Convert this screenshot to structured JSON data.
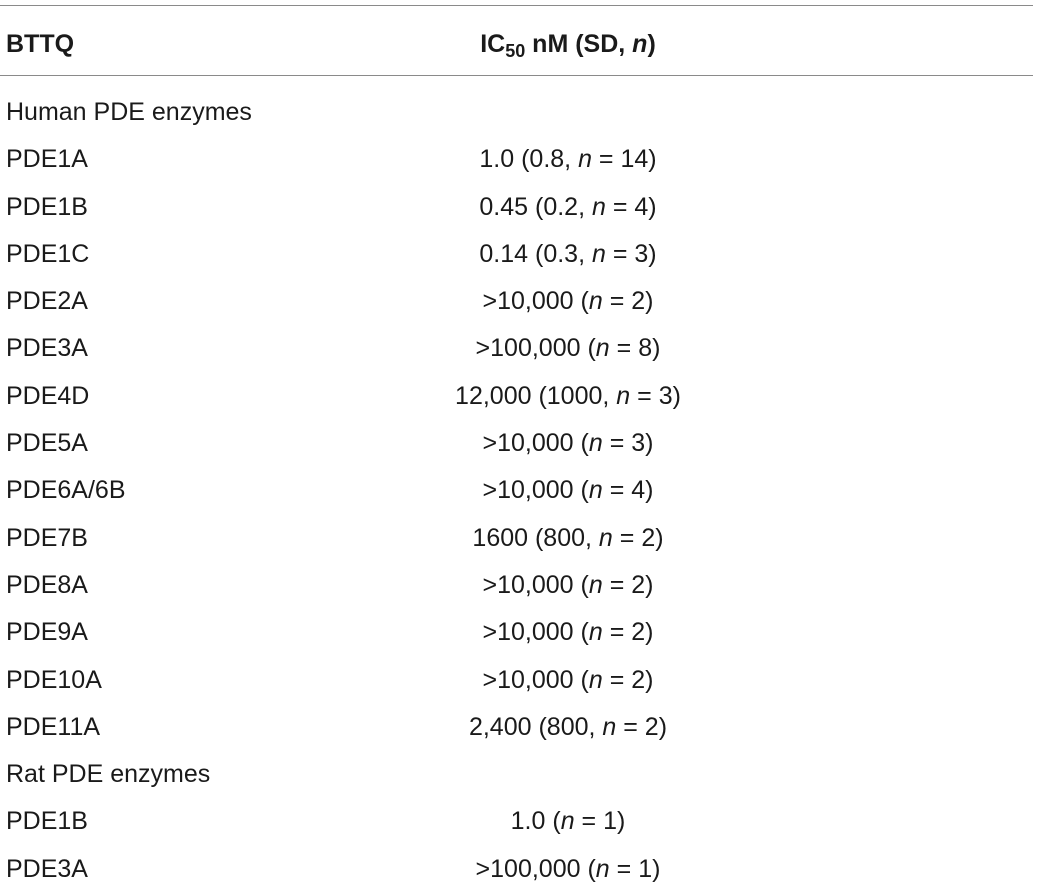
{
  "table": {
    "header": {
      "col1": "BTTQ",
      "col2_pre": "IC",
      "col2_sub": "50",
      "col2_mid": " nM (SD, ",
      "col2_n": "n",
      "col2_post": ")"
    },
    "rows": [
      {
        "type": "section",
        "label": "Human PDE enzymes"
      },
      {
        "type": "data",
        "enzyme": "PDE1A",
        "pre": "1.0 (0.8, ",
        "n": "n",
        "post": " = 14)"
      },
      {
        "type": "data",
        "enzyme": "PDE1B",
        "pre": "0.45 (0.2, ",
        "n": "n",
        "post": " = 4)"
      },
      {
        "type": "data",
        "enzyme": "PDE1C",
        "pre": "0.14 (0.3, ",
        "n": "n",
        "post": " = 3)"
      },
      {
        "type": "data",
        "enzyme": "PDE2A",
        "pre": ">10,000 (",
        "n": "n",
        "post": " = 2)"
      },
      {
        "type": "data",
        "enzyme": "PDE3A",
        "pre": ">100,000 (",
        "n": "n",
        "post": " = 8)"
      },
      {
        "type": "data",
        "enzyme": "PDE4D",
        "pre": "12,000 (1000, ",
        "n": "n",
        "post": " = 3)"
      },
      {
        "type": "data",
        "enzyme": "PDE5A",
        "pre": ">10,000 (",
        "n": "n",
        "post": " = 3)"
      },
      {
        "type": "data",
        "enzyme": "PDE6A/6B",
        "pre": ">10,000 (",
        "n": "n",
        "post": " = 4)"
      },
      {
        "type": "data",
        "enzyme": "PDE7B",
        "pre": "1600 (800, ",
        "n": "n",
        "post": " = 2)"
      },
      {
        "type": "data",
        "enzyme": "PDE8A",
        "pre": ">10,000 (",
        "n": "n",
        "post": " = 2)"
      },
      {
        "type": "data",
        "enzyme": "PDE9A",
        "pre": ">10,000 (",
        "n": "n",
        "post": " = 2)"
      },
      {
        "type": "data",
        "enzyme": "PDE10A",
        "pre": ">10,000 (",
        "n": "n",
        "post": " = 2)"
      },
      {
        "type": "data",
        "enzyme": "PDE11A",
        "pre": "2,400 (800, ",
        "n": "n",
        "post": " = 2)"
      },
      {
        "type": "section",
        "label": "Rat PDE enzymes"
      },
      {
        "type": "data",
        "enzyme": "PDE1B",
        "pre": "1.0 (",
        "n": "n",
        "post": " = 1)"
      },
      {
        "type": "data",
        "enzyme": "PDE3A",
        "pre": ">100,000 (",
        "n": "n",
        "post": " = 1)"
      }
    ]
  }
}
